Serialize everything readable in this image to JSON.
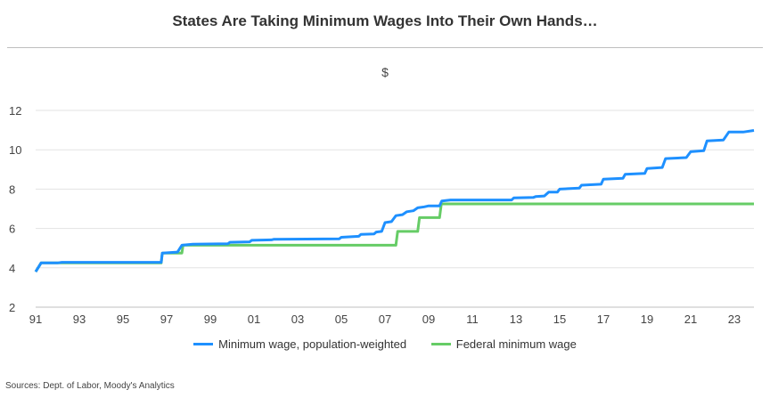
{
  "title": "States Are Taking Minimum Wages Into Their Own Hands…",
  "source": "Sources: Dept. of Labor, Moody's Analytics",
  "chart_data": {
    "type": "line",
    "unit_label": "$",
    "ylim": [
      2,
      12
    ],
    "yticks": [
      2,
      4,
      6,
      8,
      10,
      12
    ],
    "xlim": [
      1991,
      2023.9
    ],
    "xticks": [
      {
        "x": 1991,
        "label": "91"
      },
      {
        "x": 1993,
        "label": "93"
      },
      {
        "x": 1995,
        "label": "95"
      },
      {
        "x": 1997,
        "label": "97"
      },
      {
        "x": 1999,
        "label": "99"
      },
      {
        "x": 2001,
        "label": "01"
      },
      {
        "x": 2003,
        "label": "03"
      },
      {
        "x": 2005,
        "label": "05"
      },
      {
        "x": 2007,
        "label": "07"
      },
      {
        "x": 2009,
        "label": "09"
      },
      {
        "x": 2011,
        "label": "11"
      },
      {
        "x": 2013,
        "label": "13"
      },
      {
        "x": 2015,
        "label": "15"
      },
      {
        "x": 2017,
        "label": "17"
      },
      {
        "x": 2019,
        "label": "19"
      },
      {
        "x": 2021,
        "label": "21"
      },
      {
        "x": 2023,
        "label": "23"
      }
    ],
    "grid": "horizontal",
    "legend_position": "bottom",
    "series": [
      {
        "name": "Minimum wage, population-weighted",
        "color": "#1e90ff",
        "points": [
          [
            1991.0,
            3.8
          ],
          [
            1991.25,
            4.25
          ],
          [
            1992.0,
            4.25
          ],
          [
            1992.2,
            4.28
          ],
          [
            1996.75,
            4.28
          ],
          [
            1996.8,
            4.75
          ],
          [
            1997.5,
            4.8
          ],
          [
            1997.7,
            5.15
          ],
          [
            1998.2,
            5.2
          ],
          [
            1999.8,
            5.22
          ],
          [
            1999.9,
            5.3
          ],
          [
            2000.8,
            5.32
          ],
          [
            2000.9,
            5.4
          ],
          [
            2001.8,
            5.42
          ],
          [
            2001.9,
            5.45
          ],
          [
            2004.9,
            5.47
          ],
          [
            2005.0,
            5.55
          ],
          [
            2005.8,
            5.6
          ],
          [
            2005.9,
            5.7
          ],
          [
            2006.5,
            5.72
          ],
          [
            2006.6,
            5.82
          ],
          [
            2006.85,
            5.85
          ],
          [
            2007.0,
            6.3
          ],
          [
            2007.3,
            6.35
          ],
          [
            2007.5,
            6.65
          ],
          [
            2007.8,
            6.7
          ],
          [
            2008.0,
            6.85
          ],
          [
            2008.3,
            6.9
          ],
          [
            2008.5,
            7.05
          ],
          [
            2008.8,
            7.1
          ],
          [
            2009.0,
            7.15
          ],
          [
            2009.5,
            7.15
          ],
          [
            2009.6,
            7.4
          ],
          [
            2010.0,
            7.45
          ],
          [
            2012.8,
            7.45
          ],
          [
            2012.9,
            7.55
          ],
          [
            2013.8,
            7.58
          ],
          [
            2013.9,
            7.62
          ],
          [
            2014.3,
            7.65
          ],
          [
            2014.5,
            7.85
          ],
          [
            2014.9,
            7.85
          ],
          [
            2015.0,
            8.0
          ],
          [
            2015.9,
            8.05
          ],
          [
            2016.0,
            8.2
          ],
          [
            2016.9,
            8.25
          ],
          [
            2017.0,
            8.5
          ],
          [
            2017.9,
            8.55
          ],
          [
            2018.0,
            8.75
          ],
          [
            2018.9,
            8.8
          ],
          [
            2019.0,
            9.05
          ],
          [
            2019.7,
            9.1
          ],
          [
            2019.85,
            9.55
          ],
          [
            2020.8,
            9.6
          ],
          [
            2021.0,
            9.9
          ],
          [
            2021.6,
            9.95
          ],
          [
            2021.75,
            10.45
          ],
          [
            2022.5,
            10.5
          ],
          [
            2022.75,
            10.9
          ],
          [
            2023.4,
            10.9
          ],
          [
            2023.9,
            10.98
          ]
        ]
      },
      {
        "name": "Federal minimum wage",
        "color": "#66cc66",
        "points": [
          [
            1991.0,
            3.8
          ],
          [
            1991.25,
            4.25
          ],
          [
            1996.75,
            4.25
          ],
          [
            1996.8,
            4.75
          ],
          [
            1997.7,
            4.75
          ],
          [
            1997.75,
            5.15
          ],
          [
            2007.5,
            5.15
          ],
          [
            2007.58,
            5.85
          ],
          [
            2008.5,
            5.85
          ],
          [
            2008.58,
            6.55
          ],
          [
            2009.5,
            6.55
          ],
          [
            2009.58,
            7.25
          ],
          [
            2023.9,
            7.25
          ]
        ]
      }
    ]
  }
}
